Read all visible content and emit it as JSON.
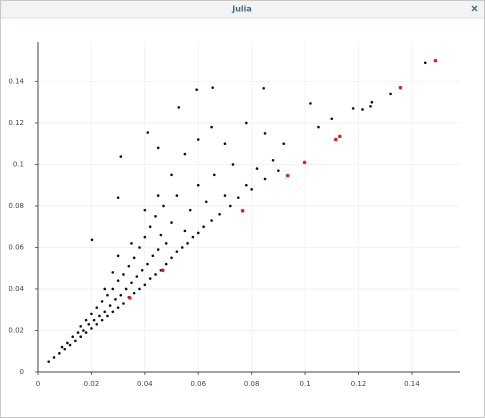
{
  "window_title": "Julia",
  "chart_data": {
    "type": "scatter",
    "xlim": [
      0,
      0.158
    ],
    "ylim": [
      0,
      0.159
    ],
    "xticks": [
      0,
      0.02,
      0.04,
      0.06,
      0.08,
      0.1,
      0.12,
      0.14
    ],
    "yticks": [
      0,
      0.02,
      0.04,
      0.06,
      0.08,
      0.1,
      0.12,
      0.14
    ],
    "grid": true,
    "series": [
      {
        "color": "#111111",
        "x": [
          0.004,
          0.006,
          0.008,
          0.009,
          0.01,
          0.011,
          0.012,
          0.013,
          0.014,
          0.015,
          0.016,
          0.016,
          0.017,
          0.018,
          0.018,
          0.019,
          0.02,
          0.02,
          0.021,
          0.022,
          0.022,
          0.023,
          0.024,
          0.024,
          0.025,
          0.026,
          0.026,
          0.027,
          0.028,
          0.028,
          0.029,
          0.03,
          0.03,
          0.031,
          0.032,
          0.032,
          0.033,
          0.034,
          0.034,
          0.035,
          0.036,
          0.036,
          0.037,
          0.038,
          0.038,
          0.039,
          0.04,
          0.04,
          0.041,
          0.042,
          0.042,
          0.043,
          0.044,
          0.044,
          0.045,
          0.046,
          0.046,
          0.047,
          0.048,
          0.048,
          0.05,
          0.05,
          0.052,
          0.052,
          0.054,
          0.055,
          0.056,
          0.057,
          0.058,
          0.06,
          0.06,
          0.062,
          0.063,
          0.065,
          0.066,
          0.068,
          0.07,
          0.072,
          0.073,
          0.075,
          0.078,
          0.08,
          0.082,
          0.085,
          0.088,
          0.09,
          0.025,
          0.028,
          0.03,
          0.035,
          0.04,
          0.045,
          0.05,
          0.055,
          0.045,
          0.06,
          0.065,
          0.07,
          0.078,
          0.085,
          0.092,
          0.105,
          0.11,
          0.118,
          0.125,
          0.132,
          0.145,
          0.0654,
          0.0594,
          0.0845,
          0.0527,
          0.102,
          0.1215,
          0.1245,
          0.0411,
          0.031,
          0.0202,
          0.03
        ],
        "values": [
          0.005,
          0.007,
          0.009,
          0.012,
          0.011,
          0.014,
          0.013,
          0.017,
          0.015,
          0.019,
          0.017,
          0.022,
          0.02,
          0.019,
          0.025,
          0.023,
          0.021,
          0.028,
          0.025,
          0.023,
          0.031,
          0.027,
          0.025,
          0.034,
          0.029,
          0.027,
          0.037,
          0.032,
          0.029,
          0.04,
          0.035,
          0.031,
          0.044,
          0.037,
          0.033,
          0.047,
          0.04,
          0.036,
          0.051,
          0.043,
          0.038,
          0.055,
          0.046,
          0.04,
          0.06,
          0.049,
          0.042,
          0.065,
          0.052,
          0.045,
          0.07,
          0.056,
          0.047,
          0.075,
          0.059,
          0.049,
          0.066,
          0.08,
          0.052,
          0.062,
          0.055,
          0.072,
          0.058,
          0.085,
          0.06,
          0.068,
          0.062,
          0.078,
          0.065,
          0.067,
          0.09,
          0.07,
          0.082,
          0.073,
          0.095,
          0.076,
          0.085,
          0.08,
          0.1,
          0.084,
          0.09,
          0.088,
          0.098,
          0.093,
          0.102,
          0.097,
          0.04,
          0.048,
          0.056,
          0.062,
          0.078,
          0.085,
          0.095,
          0.105,
          0.108,
          0.112,
          0.118,
          0.11,
          0.12,
          0.115,
          0.11,
          0.118,
          0.122,
          0.127,
          0.13,
          0.134,
          0.149,
          0.137,
          0.136,
          0.1367,
          0.1275,
          0.1294,
          0.1265,
          0.128,
          0.1154,
          0.1038,
          0.0637,
          0.084
        ]
      },
      {
        "color": "#e02020",
        "x": [
          0.1488,
          0.1357,
          0.113,
          0.1115,
          0.0998,
          0.0935,
          0.0766,
          0.0467,
          0.0344
        ],
        "values": [
          0.15,
          0.137,
          0.1135,
          0.112,
          0.101,
          0.0946,
          0.0777,
          0.049,
          0.0357
        ]
      }
    ]
  }
}
